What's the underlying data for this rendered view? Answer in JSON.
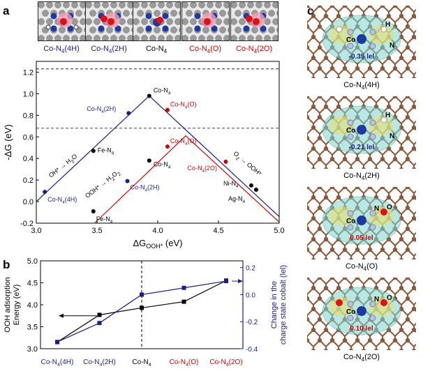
{
  "panels": {
    "a": "a",
    "b": "b",
    "c": "c"
  },
  "structures": [
    {
      "name": "Co-N4(4H)",
      "base": "Co-N",
      "sub": "4",
      "suffix": "(4H)",
      "color": "#1c1c8a"
    },
    {
      "name": "Co-N4(2H)",
      "base": "Co-N",
      "sub": "4",
      "suffix": "(2H)",
      "color": "#1c1c8a"
    },
    {
      "name": "Co-N4",
      "base": "Co-N",
      "sub": "4",
      "suffix": "",
      "color": "#000000"
    },
    {
      "name": "Co-N4(O)",
      "base": "Co-N",
      "sub": "4",
      "suffix": "(O)",
      "color": "#d40000"
    },
    {
      "name": "Co-N4(2O)",
      "base": "Co-N",
      "sub": "4",
      "suffix": "(2O)",
      "color": "#d40000"
    }
  ],
  "chart_data": [
    {
      "type": "scatter",
      "panel": "a",
      "xlabel": "ΔG",
      "xlabel_sub": "OOH*",
      "xlabel_unit": "(eV)",
      "ylabel": "-ΔG (eV)",
      "xlim": [
        3.0,
        5.0
      ],
      "ylim": [
        -0.2,
        1.3
      ],
      "xticks": [
        3.0,
        3.5,
        4.0,
        4.5,
        5.0
      ],
      "xtick_labels": [
        "3.0",
        "3.5",
        "4.0",
        "4.5",
        "5.0"
      ],
      "yticks": [
        -0.2,
        0.0,
        0.2,
        0.4,
        0.6,
        0.8,
        1.0,
        1.2
      ],
      "ytick_labels": [
        "-0.2",
        "0.0",
        "0.2",
        "0.4",
        "0.6",
        "0.8",
        "1.0",
        "1.2"
      ],
      "dashed_lines": [
        1.23,
        0.68
      ],
      "volcano_lines": [
        {
          "color": "#1c1c8a",
          "points": [
            [
              3.0,
              0.0
            ],
            [
              3.93,
              0.98
            ],
            [
              5.0,
              -0.14
            ]
          ]
        },
        {
          "color": "#d40000",
          "points": [
            [
              3.48,
              -0.2
            ],
            [
              4.23,
              0.61
            ],
            [
              5.0,
              -0.19
            ]
          ]
        }
      ],
      "points": [
        {
          "x": 3.07,
          "y": 0.09,
          "color": "#1c1c8a",
          "label": "Co-N",
          "sub": "4",
          "suffix": "(4H)"
        },
        {
          "x": 3.76,
          "y": 0.82,
          "color": "#1c1c8a",
          "label": "Co-N",
          "sub": "4",
          "suffix": "(2H)"
        },
        {
          "x": 3.93,
          "y": 0.98,
          "color": "#000000",
          "label": "Co-N",
          "sub": "4",
          "suffix": ""
        },
        {
          "x": 4.08,
          "y": 0.85,
          "color": "#d40000",
          "label": "Co-N",
          "sub": "4",
          "suffix": "(O)"
        },
        {
          "x": 3.47,
          "y": 0.47,
          "color": "#000000",
          "label": "Fe-N",
          "sub": "4",
          "suffix": ""
        },
        {
          "x": 3.75,
          "y": 0.19,
          "color": "#1c1c8a",
          "label": "Co-N",
          "sub": "4",
          "suffix": "(2H)"
        },
        {
          "x": 3.93,
          "y": 0.38,
          "color": "#000000",
          "label": "Co-N",
          "sub": "4",
          "suffix": ""
        },
        {
          "x": 4.08,
          "y": 0.51,
          "color": "#d40000",
          "label": "Co-N",
          "sub": "4",
          "suffix": "(O)"
        },
        {
          "x": 4.56,
          "y": 0.37,
          "color": "#d40000",
          "label": "Co-N",
          "sub": "4",
          "suffix": "(2O)"
        },
        {
          "x": 3.47,
          "y": -0.09,
          "color": "#000000",
          "label": "Fe-N",
          "sub": "4",
          "suffix": ""
        },
        {
          "x": 4.77,
          "y": 0.15,
          "color": "#000000",
          "label": "Ni-N",
          "sub": "4",
          "suffix": ""
        },
        {
          "x": 4.81,
          "y": 0.11,
          "color": "#000000",
          "label": "Ag-N",
          "sub": "4",
          "suffix": ""
        }
      ],
      "annotations": [
        {
          "text": "OH*",
          "arrow": "→",
          "product": "H",
          "product_sub": "2",
          "product_end": "O",
          "color": "#000000"
        },
        {
          "text": "OOH*",
          "arrow": "→",
          "product": "H",
          "product_sub": "2",
          "product_end": "O",
          "product_sub2": "2",
          "color": "#000000"
        },
        {
          "text": "O",
          "text_sub": "2",
          "arrow": "→",
          "product": "OOH*",
          "color": "#000000"
        }
      ]
    },
    {
      "type": "line",
      "panel": "b",
      "categories": [
        "Co-N4(4H)",
        "Co-N4(2H)",
        "Co-N4",
        "Co-N4(O)",
        "Co-N4(2O)"
      ],
      "ylabel_left": [
        "OOH adsorption",
        "Energy (eV)"
      ],
      "ylabel_right": [
        "Change in the",
        "charge state cobalt (lel)"
      ],
      "ylim_left": [
        3.0,
        5.0
      ],
      "yticks_left": [
        3.0,
        3.5,
        4.0,
        4.5,
        5.0
      ],
      "ytick_labels_left": [
        "3.0",
        "3.5",
        "4.0",
        "4.5",
        "5.0"
      ],
      "ylim_right": [
        -0.4,
        0.25
      ],
      "yticks_right": [
        -0.4,
        -0.2,
        0.0,
        0.2
      ],
      "ytick_labels_right": [
        "-0.4",
        "-0.2",
        "0.0",
        "0.2"
      ],
      "series": [
        {
          "axis": "left",
          "color": "#000000",
          "values": [
            3.15,
            3.77,
            3.93,
            4.07,
            4.55
          ]
        },
        {
          "axis": "right",
          "color": "#1c1c8a",
          "values": [
            -0.35,
            -0.21,
            0.0,
            0.05,
            0.1
          ]
        }
      ],
      "vline_category": "Co-N4"
    }
  ],
  "charge_panels": [
    {
      "structure": "Co-N4(4H)",
      "label_base": "Co-N",
      "label_sub": "4",
      "label_suffix": "(4H)",
      "charge": "-0.35 lel",
      "charge_color": "#1c1c8a",
      "atoms": [
        "Co",
        "H",
        "N"
      ]
    },
    {
      "structure": "Co-N4(2H)",
      "label_base": "Co-N",
      "label_sub": "4",
      "label_suffix": "(2H)",
      "charge": "-0.21 lel",
      "charge_color": "#1c1c8a",
      "atoms": [
        "Co",
        "H",
        "N"
      ]
    },
    {
      "structure": "Co-N4(O)",
      "label_base": "Co-N",
      "label_sub": "4",
      "label_suffix": "(O)",
      "charge": "0.05 lel",
      "charge_color": "#d40000",
      "atoms": [
        "Co",
        "N",
        "O"
      ]
    },
    {
      "structure": "Co-N4(2O)",
      "label_base": "Co-N",
      "label_sub": "4",
      "label_suffix": "(2O)",
      "charge": "0.10 lel",
      "charge_color": "#d40000",
      "atoms": [
        "Co",
        "N",
        "O"
      ]
    }
  ],
  "colors": {
    "blue": "#1c1c8a",
    "red": "#d40000",
    "carbon": "#8b5a3c",
    "isosurface_cyan": "#7fd6d0",
    "isosurface_yellow": "#e8e070"
  }
}
